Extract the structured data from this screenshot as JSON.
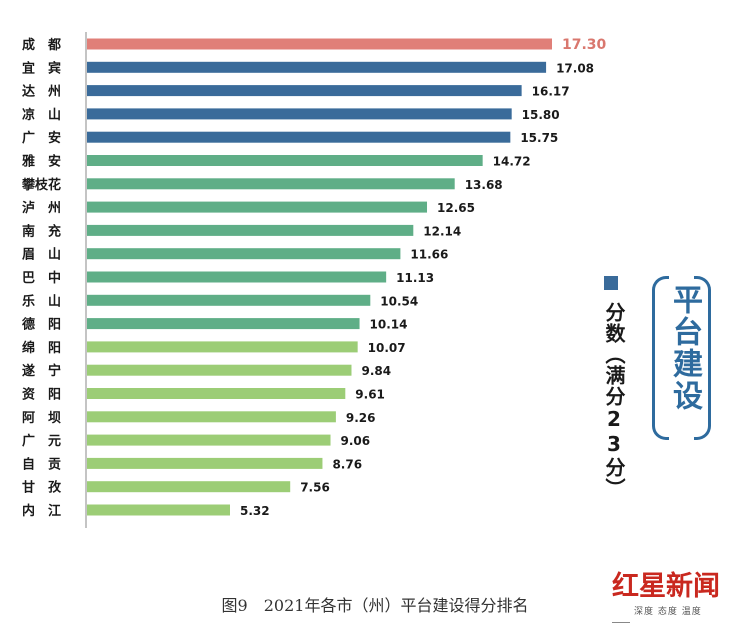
{
  "chart_data": {
    "type": "bar",
    "orientation": "horizontal",
    "categories": [
      "成　都",
      "宜　宾",
      "达　州",
      "凉　山",
      "广　安",
      "雅　安",
      "攀枝花",
      "泸　州",
      "南　充",
      "眉　山",
      "巴　中",
      "乐　山",
      "德　阳",
      "绵　阳",
      "遂　宁",
      "资　阳",
      "阿　坝",
      "广　元",
      "自　贡",
      "甘　孜",
      "内　江"
    ],
    "values": [
      17.3,
      17.08,
      16.17,
      15.8,
      15.75,
      14.72,
      13.68,
      12.65,
      12.14,
      11.66,
      11.13,
      10.54,
      10.14,
      10.07,
      9.84,
      9.61,
      9.26,
      9.06,
      8.76,
      7.56,
      5.32
    ],
    "value_labels": [
      "17.30",
      "17.08",
      "16.17",
      "15.80",
      "15.75",
      "14.72",
      "13.68",
      "12.65",
      "12.14",
      "11.66",
      "11.13",
      "10.54",
      "10.14",
      "10.07",
      "9.84",
      "9.61",
      "9.26",
      "9.06",
      "8.76",
      "7.56",
      "5.32"
    ],
    "colors": [
      "#e07f78",
      "#3a6b9a",
      "#3a6b9a",
      "#3a6b9a",
      "#3a6b9a",
      "#5fae87",
      "#5fae87",
      "#5fae87",
      "#5fae87",
      "#5fae87",
      "#5fae87",
      "#5fae87",
      "#5fae87",
      "#9ccd76",
      "#9ccd76",
      "#9ccd76",
      "#9ccd76",
      "#9ccd76",
      "#9ccd76",
      "#9ccd76",
      "#9ccd76"
    ],
    "highlight_label_color": "#d9776e",
    "xlim": [
      0,
      23
    ],
    "title": "平台建设",
    "legend_label": "分数（满分23分）",
    "legend_color": "#3a6b9a",
    "grid": false,
    "legend_position": "right"
  },
  "caption": "图9　2021年各市（州）平台建设得分排名",
  "logo": {
    "text": "红星新闻",
    "subtitle": "深度 态度 温度"
  }
}
